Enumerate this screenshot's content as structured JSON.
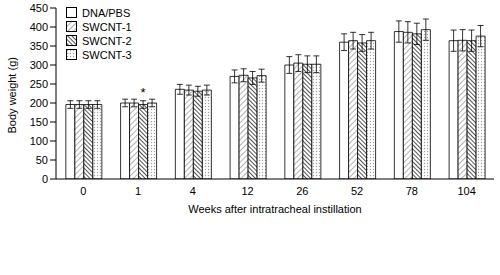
{
  "chart_data": {
    "type": "bar",
    "x_label": "Weeks after intratracheal instillation",
    "y_label": "Body weight (g)",
    "categories": [
      "0",
      "1",
      "4",
      "12",
      "26",
      "52",
      "78",
      "104"
    ],
    "series": [
      {
        "name": "DNA/PBS",
        "color": "#ffffff",
        "values": [
          196,
          200,
          236,
          270,
          300,
          360,
          388,
          364
        ],
        "errors": [
          10,
          10,
          13,
          17,
          22,
          22,
          28,
          28
        ]
      },
      {
        "name": "SWCNT-1",
        "color": "#808080",
        "values": [
          196,
          200,
          234,
          273,
          305,
          364,
          386,
          365
        ],
        "errors": [
          10,
          10,
          13,
          17,
          22,
          22,
          28,
          28
        ]
      },
      {
        "name": "SWCNT-2",
        "color": "#404040",
        "values": [
          196,
          196,
          231,
          266,
          302,
          358,
          382,
          364
        ],
        "errors": [
          10,
          10,
          13,
          17,
          22,
          22,
          28,
          28
        ]
      },
      {
        "name": "SWCNT-3",
        "color": "#a0a0a0",
        "values": [
          196,
          200,
          234,
          272,
          302,
          364,
          393,
          376
        ],
        "errors": [
          10,
          10,
          13,
          17,
          22,
          22,
          28,
          28
        ]
      }
    ],
    "annotations": [
      {
        "text": "*",
        "category": "1",
        "series": "SWCNT-2"
      }
    ],
    "ylim": [
      0,
      450
    ],
    "yticks": [
      0,
      50,
      100,
      150,
      200,
      250,
      300,
      350,
      400,
      450
    ],
    "grid": false,
    "legend": "upper left"
  }
}
